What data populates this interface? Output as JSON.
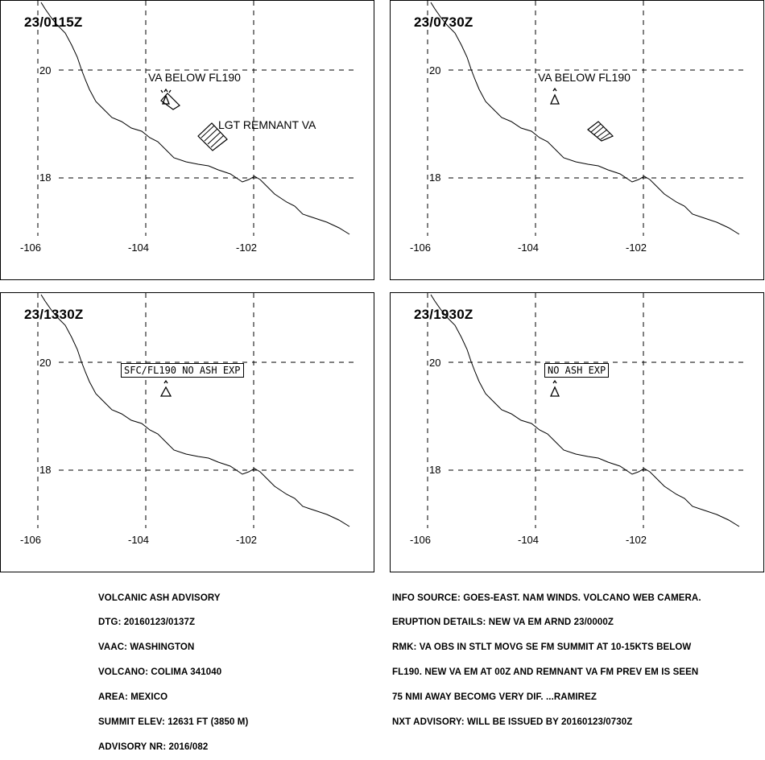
{
  "panels": [
    {
      "time": "23/0115Z",
      "labels": [
        "VA BELOW FL190",
        "LGT REMNANT VA"
      ],
      "box_label": ""
    },
    {
      "time": "23/0730Z",
      "labels": [
        "VA BELOW FL190"
      ],
      "box_label": ""
    },
    {
      "time": "23/1330Z",
      "labels": [],
      "box_label": "SFC/FL190 NO ASH EXP"
    },
    {
      "time": "23/1930Z",
      "labels": [],
      "box_label": "NO ASH EXP"
    }
  ],
  "axes": {
    "lat_ticks": [
      "20",
      "18"
    ],
    "lon_ticks": [
      "-106",
      "-104",
      "-102"
    ]
  },
  "advisory": [
    "VOLCANIC ASH ADVISORY",
    "DTG: 20160123/0137Z",
    "VAAC: WASHINGTON",
    "VOLCANO: COLIMA 341040",
    "AREA: MEXICO",
    "SUMMIT ELEV: 12631 FT (3850 M)",
    "ADVISORY NR: 2016/082"
  ],
  "info": [
    "INFO SOURCE: GOES-EAST. NAM WINDS. VOLCANO WEB CAMERA.",
    "ERUPTION DETAILS: NEW VA EM ARND 23/0000Z",
    "RMK: VA OBS IN STLT MOVG SE FM SUMMIT AT 10-15KTS BELOW",
    "FL190. NEW VA EM AT 00Z AND REMNANT VA FM PREV EM IS SEEN",
    "75 NMI AWAY BECOMG VERY DIF. ...RAMIREZ",
    "NXT ADVISORY: WILL BE ISSUED BY 20160123/0730Z"
  ],
  "icons": {
    "volcano": "volcano-icon"
  }
}
